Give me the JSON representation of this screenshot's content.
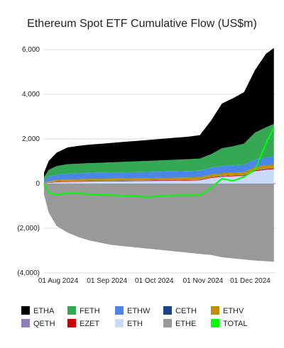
{
  "chart_data": {
    "type": "area",
    "title": "Ethereum Spot ETF Cumulative Flow (US$m)",
    "xlabel": "",
    "ylabel": "",
    "x_ticks": [
      "01 Aug 2024",
      "01 Sep 2024",
      "01 Oct 2024",
      "01 Nov 2024",
      "01 Dec 2024"
    ],
    "y_ticks": [
      {
        "value": 6000,
        "label": "6,000"
      },
      {
        "value": 4000,
        "label": "4,000"
      },
      {
        "value": 2000,
        "label": "2,000"
      },
      {
        "value": 0,
        "label": "0"
      },
      {
        "value": -2000,
        "label": "(2,000)"
      },
      {
        "value": -4000,
        "label": "(4,000)"
      }
    ],
    "ylim": [
      -4000,
      6000
    ],
    "grid": "horizontal",
    "legend_position": "bottom",
    "dates": [
      "2024-07-23",
      "2024-07-26",
      "2024-07-31",
      "2024-08-07",
      "2024-08-14",
      "2024-08-21",
      "2024-08-28",
      "2024-09-04",
      "2024-09-11",
      "2024-09-18",
      "2024-09-25",
      "2024-10-02",
      "2024-10-09",
      "2024-10-16",
      "2024-10-23",
      "2024-10-30",
      "2024-11-06",
      "2024-11-13",
      "2024-11-20",
      "2024-11-27",
      "2024-12-04",
      "2024-12-11",
      "2024-12-16"
    ],
    "positive_stack": [
      {
        "name": "ETH",
        "color": "#c9daf8",
        "values": [
          0,
          40,
          60,
          80,
          85,
          90,
          95,
          100,
          105,
          110,
          115,
          120,
          125,
          130,
          135,
          145,
          250,
          300,
          330,
          340,
          560,
          620,
          650
        ]
      },
      {
        "name": "EZET",
        "color": "#cc0000",
        "values": [
          10,
          15,
          18,
          20,
          21,
          22,
          22,
          22,
          23,
          23,
          23,
          24,
          25,
          25,
          26,
          26,
          28,
          30,
          30,
          32,
          34,
          36,
          38
        ]
      },
      {
        "name": "QETH",
        "color": "#8e7cc3",
        "values": [
          5,
          8,
          10,
          12,
          12,
          13,
          13,
          13,
          14,
          14,
          14,
          15,
          15,
          15,
          16,
          16,
          17,
          18,
          18,
          19,
          20,
          20,
          21
        ]
      },
      {
        "name": "ETHV",
        "color": "#bf9000",
        "values": [
          20,
          50,
          70,
          80,
          82,
          84,
          85,
          86,
          87,
          88,
          89,
          90,
          92,
          95,
          97,
          100,
          110,
          115,
          118,
          120,
          130,
          140,
          150
        ]
      },
      {
        "name": "CETH",
        "color": "#1c4587",
        "values": [
          2,
          4,
          5,
          6,
          6,
          6,
          6,
          7,
          7,
          7,
          7,
          8,
          8,
          8,
          8,
          8,
          9,
          10,
          10,
          10,
          11,
          12,
          13
        ]
      },
      {
        "name": "ETHW",
        "color": "#4a86e8",
        "values": [
          100,
          200,
          230,
          250,
          255,
          260,
          262,
          265,
          268,
          270,
          272,
          275,
          278,
          280,
          282,
          285,
          300,
          310,
          315,
          320,
          330,
          340,
          350
        ]
      },
      {
        "name": "FETH",
        "color": "#34a853",
        "values": [
          150,
          300,
          390,
          420,
          430,
          440,
          450,
          460,
          470,
          480,
          490,
          500,
          510,
          520,
          530,
          540,
          600,
          800,
          850,
          950,
          1200,
          1350,
          1450
        ]
      },
      {
        "name": "ETHA",
        "color": "#000000",
        "values": [
          200,
          400,
          600,
          750,
          800,
          830,
          850,
          870,
          890,
          910,
          930,
          950,
          970,
          990,
          1010,
          1050,
          1500,
          2000,
          2150,
          2300,
          2800,
          3300,
          3400
        ]
      }
    ],
    "negative_series": {
      "name": "ETHE",
      "color": "#999999",
      "values": [
        -500,
        -1300,
        -1900,
        -2200,
        -2400,
        -2550,
        -2650,
        -2750,
        -2800,
        -2850,
        -2900,
        -2950,
        -3000,
        -3050,
        -3100,
        -3150,
        -3200,
        -3300,
        -3350,
        -3400,
        -3450,
        -3480,
        -3500
      ]
    },
    "total_series": {
      "name": "TOTAL",
      "color": "#00ff00",
      "values": [
        0,
        -400,
        -500,
        -420,
        -440,
        -480,
        -500,
        -520,
        -540,
        -560,
        -600,
        -580,
        -540,
        -520,
        -520,
        -520,
        -200,
        220,
        120,
        300,
        620,
        1800,
        2500
      ]
    },
    "legend": [
      {
        "name": "ETHA",
        "color": "#000000"
      },
      {
        "name": "FETH",
        "color": "#34a853"
      },
      {
        "name": "ETHW",
        "color": "#4a86e8"
      },
      {
        "name": "CETH",
        "color": "#1c4587"
      },
      {
        "name": "ETHV",
        "color": "#bf9000"
      },
      {
        "name": "QETH",
        "color": "#8e7cc3"
      },
      {
        "name": "EZET",
        "color": "#cc0000"
      },
      {
        "name": "ETH",
        "color": "#c9daf8"
      },
      {
        "name": "ETHE",
        "color": "#999999"
      },
      {
        "name": "TOTAL",
        "color": "#00ff00"
      }
    ]
  }
}
